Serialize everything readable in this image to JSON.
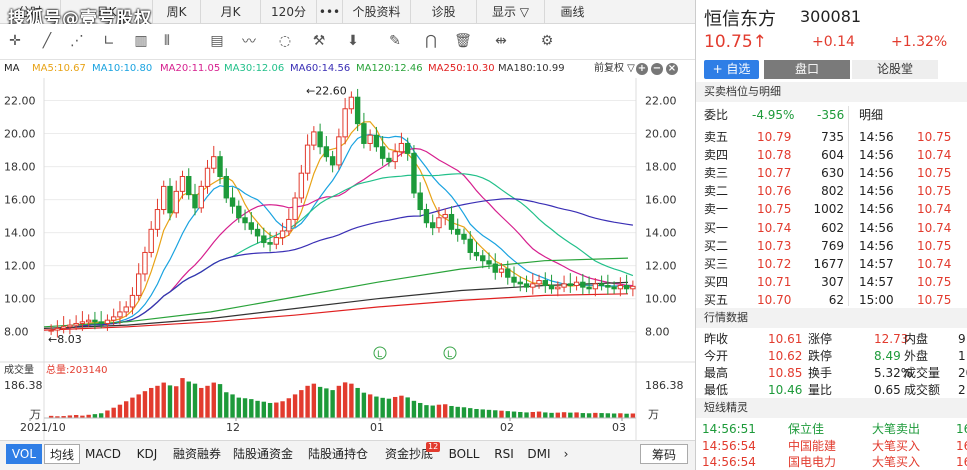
{
  "tabs": {
    "items": [
      "分时",
      "日K",
      "周K",
      "月K",
      "120分",
      "•••",
      "个股资料",
      "诊股",
      "显示 ▽",
      "画线"
    ]
  },
  "watermark": "搜狐号@壹号股权",
  "toolbar": {
    "icons": [
      "crosshair-icon",
      "line-draw-icon",
      "fan-icon",
      "ruler-icon",
      "bar-icon",
      "columns-icon",
      "text-icon",
      "wave-icon",
      "cycle-icon",
      "tool-icon",
      "arrow-down-icon",
      "pen-icon",
      "magnet-icon",
      "trash-icon",
      "split-icon",
      "settings-icon"
    ]
  },
  "ma_bar": {
    "label": "MA",
    "ma5": "MA5:10.67",
    "ma10": "MA10:10.80",
    "ma20": "MA20:11.05",
    "ma30": "MA30:12.06",
    "ma60": "MA60:14.56",
    "ma120": "MA120:12.46",
    "ma250": "MA250:10.30",
    "ma180": "MA180:10.99",
    "adj": "前复权 ▽"
  },
  "colors": {
    "ma5": "#e8a317",
    "ma10": "#1aa3e0",
    "ma20": "#d61f8e",
    "ma30": "#22c08a",
    "ma60": "#3a2fb5",
    "ma120": "#2aa33a",
    "ma250": "#e02020",
    "ma180": "#333333",
    "up": "#e23b2e",
    "down": "#1d9a3a"
  },
  "chart": {
    "yticks": [
      "22.00",
      "20.00",
      "18.00",
      "16.00",
      "14.00",
      "12.00",
      "10.00",
      "8.00"
    ],
    "high_label": "←22.60",
    "low_label": "←8.03",
    "xticks": [
      "2021/10",
      "12",
      "01",
      "02",
      "03"
    ],
    "vol_yticks": [
      "186.38",
      "万"
    ],
    "event_marker": "L"
  },
  "volume": {
    "label": "成交量",
    "total": "总量:203140"
  },
  "bottom": {
    "tabs": [
      "VOL",
      "均线",
      "MACD",
      "KDJ",
      "融资融券",
      "陆股通资金",
      "陆股通持仓",
      "资金抄底",
      "BOLL",
      "RSI",
      "DMI",
      "›",
      "筹码"
    ],
    "badge": "12"
  },
  "chart_data": {
    "type": "candlestick",
    "ylim": [
      7.5,
      23
    ],
    "high": 22.6,
    "low": 8.03,
    "closes": [
      8.1,
      8.2,
      8.3,
      8.4,
      8.5,
      8.6,
      8.7,
      8.6,
      8.5,
      8.7,
      8.9,
      9.2,
      9.5,
      10.2,
      11.5,
      12.8,
      14.2,
      15.4,
      16.8,
      15.2,
      16.5,
      17.4,
      16.3,
      15.5,
      16.8,
      17.9,
      18.6,
      17.4,
      16.1,
      15.6,
      14.9,
      14.6,
      14.2,
      13.8,
      13.4,
      13.3,
      13.7,
      14.1,
      14.8,
      16.1,
      17.6,
      19.3,
      20.1,
      19.2,
      18.6,
      18.1,
      19.8,
      21.5,
      22.2,
      20.6,
      19.4,
      19.9,
      19.2,
      18.5,
      18.3,
      18.9,
      19.4,
      18.8,
      16.4,
      15.4,
      14.6,
      14.3,
      14.9,
      15.1,
      14.2,
      13.9,
      13.6,
      12.8,
      12.6,
      12.3,
      12.1,
      11.6,
      11.8,
      11.3,
      11.0,
      10.9,
      10.7,
      10.9,
      11.1,
      10.8,
      10.6,
      10.7,
      10.9,
      10.8,
      11.0,
      10.7,
      10.6,
      10.9,
      10.8,
      10.7,
      10.6,
      10.8,
      10.6,
      10.75
    ],
    "volume_ymax": 186.38,
    "volumes": [
      10,
      8,
      9,
      12,
      14,
      11,
      15,
      18,
      22,
      35,
      48,
      62,
      78,
      95,
      110,
      125,
      140,
      150,
      165,
      152,
      148,
      186,
      170,
      160,
      140,
      150,
      165,
      158,
      120,
      110,
      95,
      92,
      88,
      80,
      76,
      70,
      72,
      78,
      92,
      110,
      130,
      150,
      160,
      145,
      138,
      130,
      150,
      166,
      160,
      140,
      118,
      110,
      100,
      94,
      90,
      98,
      104,
      96,
      80,
      70,
      60,
      58,
      62,
      64,
      56,
      52,
      50,
      46,
      42,
      40,
      38,
      36,
      34,
      32,
      30,
      28,
      26,
      28,
      30,
      26,
      24,
      25,
      27,
      25,
      26,
      23,
      22,
      24,
      23,
      22,
      21,
      22,
      20,
      21
    ]
  },
  "stock": {
    "name": "恒信东方",
    "code": "300081",
    "price": "10.75↑",
    "change": "+0.14",
    "pct": "+1.32%",
    "add_btn": "+ 自选",
    "tab1": "盘口",
    "tab2": "论股堂"
  },
  "orderbook": {
    "title": "买卖档位与明细",
    "ratio_label": "委比",
    "ratio": "-4.95%",
    "ratio_diff": "-356",
    "detail_label": "明细",
    "asks": [
      [
        "卖五",
        "10.79",
        "735"
      ],
      [
        "卖四",
        "10.78",
        "604"
      ],
      [
        "卖三",
        "10.77",
        "630"
      ],
      [
        "卖二",
        "10.76",
        "802"
      ],
      [
        "卖一",
        "10.75",
        "1002"
      ]
    ],
    "bids": [
      [
        "买一",
        "10.74",
        "602"
      ],
      [
        "买二",
        "10.73",
        "769"
      ],
      [
        "买三",
        "10.72",
        "1677"
      ],
      [
        "买四",
        "10.71",
        "307"
      ],
      [
        "买五",
        "10.70",
        "62"
      ]
    ],
    "trades": [
      [
        "14:56",
        "10.75"
      ],
      [
        "14:56",
        "10.74"
      ],
      [
        "14:56",
        "10.75"
      ],
      [
        "14:56",
        "10.75"
      ],
      [
        "14:56",
        "10.74"
      ],
      [
        "14:56",
        "10.74"
      ],
      [
        "14:56",
        "10.75"
      ],
      [
        "14:57",
        "10.74"
      ],
      [
        "14:57",
        "10.75"
      ],
      [
        "15:00",
        "10.75"
      ]
    ]
  },
  "quote": {
    "title": "行情数据",
    "rows": [
      [
        "昨收",
        "10.61",
        "涨停",
        "12.73",
        "内盘",
        "9"
      ],
      [
        "今开",
        "10.62",
        "跌停",
        "8.49",
        "外盘",
        "1"
      ],
      [
        "最高",
        "10.85",
        "换手",
        "5.32%",
        "成交量",
        "20"
      ],
      [
        "最低",
        "10.46",
        "量比",
        "0.65",
        "成交额",
        "2"
      ]
    ]
  },
  "elf": {
    "title": "短线精灵",
    "rows": [
      [
        "14:56:51",
        "保立佳",
        "大笔卖出",
        "16"
      ],
      [
        "14:56:54",
        "中国能建",
        "大笔买入",
        "16"
      ],
      [
        "14:56:54",
        "国电电力",
        "大笔买入",
        "16"
      ]
    ]
  }
}
